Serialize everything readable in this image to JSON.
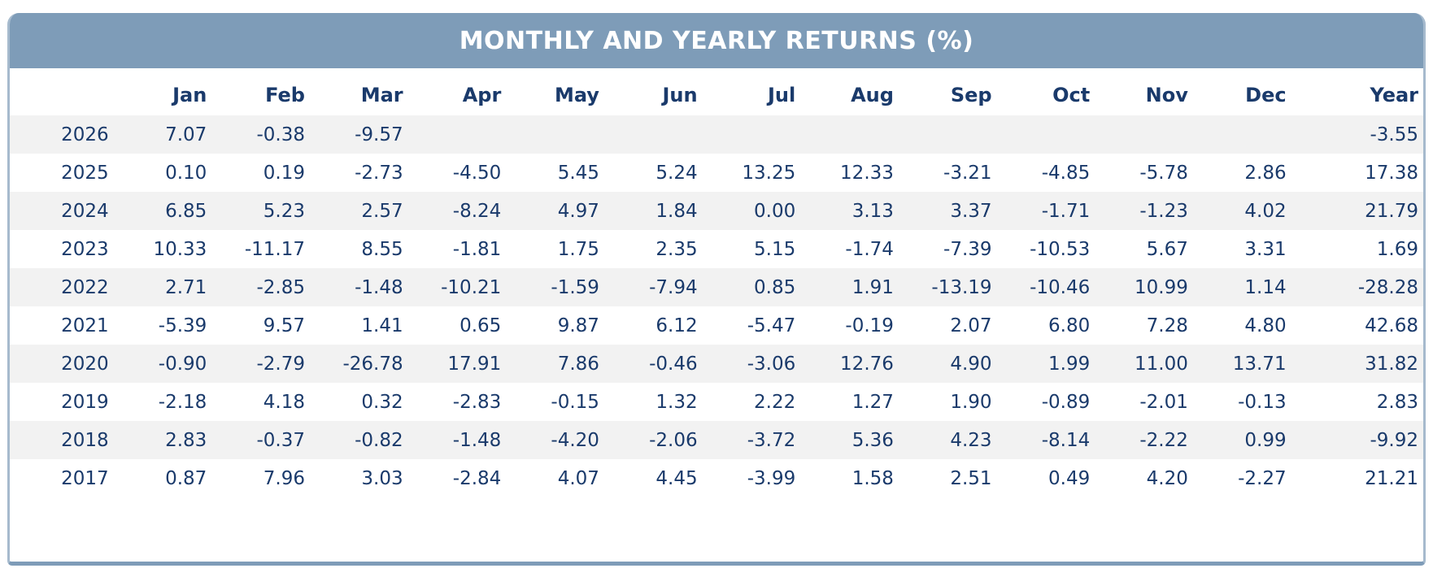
{
  "header": {
    "title": "MONTHLY AND YEARLY RETURNS (%)"
  },
  "colors": {
    "header_bg": "#7E9CB8",
    "text_navy": "#1A3A6B",
    "stripe_gray": "#F2F2F2",
    "border_light": "#A6BACD",
    "title_text": "#FFFFFF"
  },
  "chart_data": {
    "type": "table",
    "title": "MONTHLY AND YEARLY RETURNS (%)",
    "unit": "%",
    "columns": [
      "Jan",
      "Feb",
      "Mar",
      "Apr",
      "May",
      "Jun",
      "Jul",
      "Aug",
      "Sep",
      "Oct",
      "Nov",
      "Dec",
      "Year"
    ],
    "rows": [
      {
        "year": "2026",
        "monthly": [
          7.07,
          -0.38,
          -9.57,
          null,
          null,
          null,
          null,
          null,
          null,
          null,
          null,
          null
        ],
        "year_total": -3.55
      },
      {
        "year": "2025",
        "monthly": [
          0.1,
          0.19,
          -2.73,
          -4.5,
          5.45,
          5.24,
          13.25,
          12.33,
          -3.21,
          -4.85,
          -5.78,
          2.86
        ],
        "year_total": 17.38
      },
      {
        "year": "2024",
        "monthly": [
          6.85,
          5.23,
          2.57,
          -8.24,
          4.97,
          1.84,
          0.0,
          3.13,
          3.37,
          -1.71,
          -1.23,
          4.02
        ],
        "year_total": 21.79
      },
      {
        "year": "2023",
        "monthly": [
          10.33,
          -11.17,
          8.55,
          -1.81,
          1.75,
          2.35,
          5.15,
          -1.74,
          -7.39,
          -10.53,
          5.67,
          3.31
        ],
        "year_total": 1.69
      },
      {
        "year": "2022",
        "monthly": [
          2.71,
          -2.85,
          -1.48,
          -10.21,
          -1.59,
          -7.94,
          0.85,
          1.91,
          -13.19,
          -10.46,
          10.99,
          1.14
        ],
        "year_total": -28.28
      },
      {
        "year": "2021",
        "monthly": [
          -5.39,
          9.57,
          1.41,
          0.65,
          9.87,
          6.12,
          -5.47,
          -0.19,
          2.07,
          6.8,
          7.28,
          4.8
        ],
        "year_total": 42.68
      },
      {
        "year": "2020",
        "monthly": [
          -0.9,
          -2.79,
          -26.78,
          17.91,
          7.86,
          -0.46,
          -3.06,
          12.76,
          4.9,
          1.99,
          11.0,
          13.71
        ],
        "year_total": 31.82
      },
      {
        "year": "2019",
        "monthly": [
          -2.18,
          4.18,
          0.32,
          -2.83,
          -0.15,
          1.32,
          2.22,
          1.27,
          1.9,
          -0.89,
          -2.01,
          -0.13
        ],
        "year_total": 2.83
      },
      {
        "year": "2018",
        "monthly": [
          2.83,
          -0.37,
          -0.82,
          -1.48,
          -4.2,
          -2.06,
          -3.72,
          5.36,
          4.23,
          -8.14,
          -2.22,
          0.99
        ],
        "year_total": -9.92
      },
      {
        "year": "2017",
        "monthly": [
          0.87,
          7.96,
          3.03,
          -2.84,
          4.07,
          4.45,
          -3.99,
          1.58,
          2.51,
          0.49,
          4.2,
          -2.27
        ],
        "year_total": 21.21
      }
    ]
  }
}
